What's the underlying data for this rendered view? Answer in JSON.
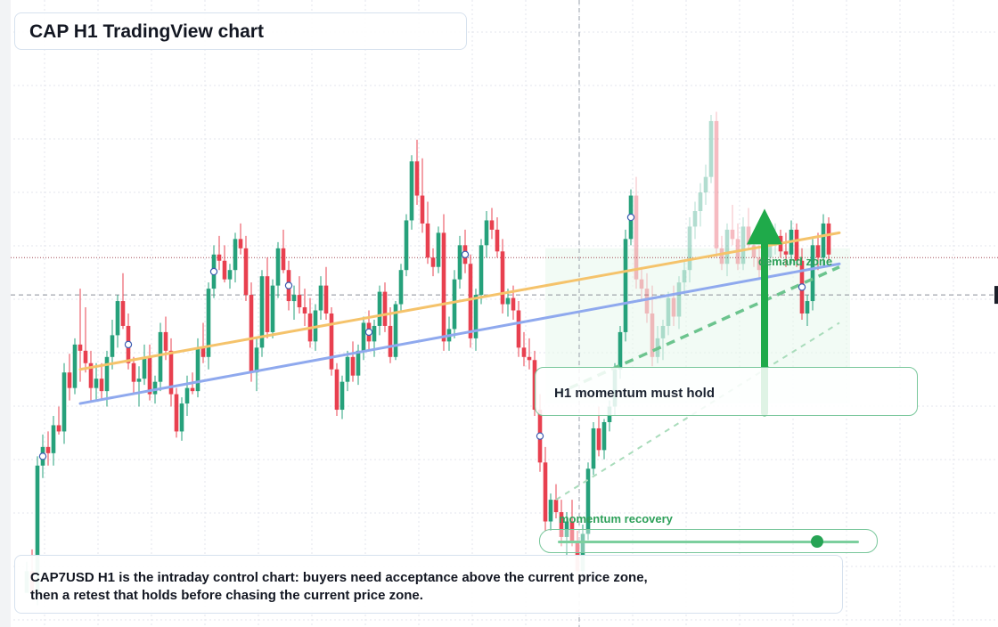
{
  "title": "CAP H1 TradingView chart",
  "callout": {
    "text": "H1 momentum must hold"
  },
  "note": {
    "text": "CAP7USD H1 is the intraday control chart: buyers need acceptance above the current price zone, then a retest that holds before chasing the current price zone."
  },
  "zone_label": "demand zone",
  "slider": {
    "label": "momentum recovery",
    "value": 0.86
  },
  "colors": {
    "up": "#26a17b",
    "down": "#e8404f",
    "trend_orange": "#f5c36b",
    "trend_blue": "#8fa9ee",
    "green_accent": "#2ea05a",
    "arrow": "#1faa4a"
  },
  "chart_data": {
    "type": "candlestick",
    "timeframe": "H1",
    "candles_ohlc": [
      [
        59.4,
        60.4,
        59.6,
        60.1
      ],
      [
        60.1,
        60.8,
        59.2,
        59.4
      ],
      [
        59.4,
        63.8,
        59.0,
        63.5
      ],
      [
        63.5,
        64.5,
        63.1,
        64.1
      ],
      [
        64.1,
        64.6,
        63.5,
        63.9
      ],
      [
        63.9,
        65.1,
        63.5,
        64.8
      ],
      [
        64.8,
        65.4,
        64.5,
        64.6
      ],
      [
        64.6,
        66.8,
        64.2,
        66.5
      ],
      [
        66.5,
        67.1,
        65.6,
        66.0
      ],
      [
        66.0,
        67.6,
        65.8,
        67.4
      ],
      [
        67.4,
        69.2,
        66.2,
        67.2
      ],
      [
        67.2,
        68.6,
        66.5,
        66.8
      ],
      [
        66.8,
        67.2,
        65.6,
        66.0
      ],
      [
        66.0,
        66.8,
        65.6,
        66.3
      ],
      [
        66.3,
        66.8,
        65.6,
        65.9
      ],
      [
        65.9,
        67.2,
        65.4,
        67.0
      ],
      [
        67.0,
        68.2,
        66.6,
        67.7
      ],
      [
        67.7,
        69.0,
        67.3,
        68.8
      ],
      [
        68.8,
        69.7,
        67.9,
        68.0
      ],
      [
        68.0,
        68.4,
        66.6,
        66.8
      ],
      [
        66.8,
        67.0,
        65.8,
        66.2
      ],
      [
        66.2,
        66.7,
        65.4,
        66.3
      ],
      [
        66.3,
        67.4,
        66.1,
        67.0
      ],
      [
        67.0,
        67.4,
        65.6,
        65.8
      ],
      [
        65.8,
        66.4,
        65.5,
        66.2
      ],
      [
        66.2,
        68.1,
        65.9,
        67.8
      ],
      [
        67.8,
        68.3,
        66.9,
        67.2
      ],
      [
        67.2,
        67.6,
        65.4,
        65.8
      ],
      [
        65.8,
        66.0,
        64.4,
        64.6
      ],
      [
        64.6,
        65.7,
        64.3,
        65.5
      ],
      [
        65.5,
        66.4,
        65.1,
        66.0
      ],
      [
        66.0,
        66.5,
        65.8,
        65.9
      ],
      [
        65.9,
        67.6,
        65.7,
        67.3
      ],
      [
        67.3,
        68.1,
        66.8,
        67.0
      ],
      [
        67.0,
        69.4,
        66.6,
        69.2
      ],
      [
        69.2,
        70.6,
        68.9,
        70.3
      ],
      [
        70.3,
        70.9,
        69.8,
        70.1
      ],
      [
        70.1,
        70.6,
        69.4,
        69.5
      ],
      [
        69.5,
        70.0,
        69.2,
        69.8
      ],
      [
        69.8,
        71.0,
        69.4,
        70.8
      ],
      [
        70.8,
        71.3,
        70.3,
        70.5
      ],
      [
        70.5,
        70.9,
        68.8,
        69.0
      ],
      [
        69.0,
        69.4,
        66.2,
        66.5
      ],
      [
        66.5,
        67.6,
        65.9,
        67.3
      ],
      [
        67.3,
        69.8,
        67.0,
        69.6
      ],
      [
        69.6,
        70.2,
        67.6,
        67.8
      ],
      [
        67.8,
        69.5,
        67.6,
        69.3
      ],
      [
        69.3,
        70.7,
        68.9,
        70.5
      ],
      [
        70.5,
        71.1,
        69.7,
        69.8
      ],
      [
        69.8,
        70.1,
        68.5,
        68.8
      ],
      [
        68.8,
        69.3,
        68.2,
        69.0
      ],
      [
        69.0,
        69.6,
        68.4,
        68.6
      ],
      [
        68.6,
        69.2,
        68.0,
        68.4
      ],
      [
        68.4,
        68.9,
        67.3,
        67.5
      ],
      [
        67.5,
        68.7,
        67.2,
        68.5
      ],
      [
        68.5,
        69.6,
        68.2,
        69.3
      ],
      [
        69.3,
        69.9,
        68.2,
        68.4
      ],
      [
        68.4,
        68.6,
        66.4,
        66.6
      ],
      [
        66.6,
        66.8,
        65.1,
        65.3
      ],
      [
        65.3,
        66.4,
        65.0,
        66.2
      ],
      [
        66.2,
        67.2,
        65.9,
        67.0
      ],
      [
        67.0,
        67.5,
        66.2,
        66.4
      ],
      [
        66.4,
        67.4,
        66.1,
        67.2
      ],
      [
        67.2,
        68.3,
        66.9,
        68.1
      ],
      [
        68.1,
        68.5,
        67.2,
        67.5
      ],
      [
        67.5,
        68.2,
        67.0,
        68.0
      ],
      [
        68.0,
        69.3,
        67.7,
        69.1
      ],
      [
        69.1,
        69.4,
        67.8,
        68.0
      ],
      [
        68.0,
        68.6,
        66.8,
        67.0
      ],
      [
        67.0,
        68.8,
        66.9,
        68.7
      ],
      [
        68.7,
        70.0,
        68.5,
        69.8
      ],
      [
        69.8,
        71.6,
        69.6,
        71.4
      ],
      [
        71.4,
        73.5,
        71.1,
        73.3
      ],
      [
        73.3,
        74.0,
        71.9,
        72.2
      ],
      [
        72.2,
        73.4,
        71.0,
        71.3
      ],
      [
        71.3,
        72.0,
        70.0,
        70.2
      ],
      [
        70.2,
        70.5,
        69.6,
        69.9
      ],
      [
        69.9,
        71.2,
        69.7,
        71.0
      ],
      [
        71.0,
        71.6,
        67.2,
        67.5
      ],
      [
        67.5,
        68.3,
        67.2,
        67.9
      ],
      [
        67.9,
        69.8,
        67.6,
        69.5
      ],
      [
        69.5,
        70.9,
        69.2,
        70.6
      ],
      [
        70.6,
        71.1,
        69.7,
        70.0
      ],
      [
        70.0,
        70.3,
        67.3,
        67.6
      ],
      [
        67.6,
        69.2,
        67.2,
        69.0
      ],
      [
        69.0,
        70.8,
        68.7,
        70.6
      ],
      [
        70.6,
        71.7,
        70.2,
        71.4
      ],
      [
        71.4,
        71.8,
        70.8,
        71.1
      ],
      [
        71.1,
        71.5,
        70.2,
        70.4
      ],
      [
        70.4,
        70.8,
        68.4,
        68.7
      ],
      [
        68.7,
        69.2,
        68.3,
        68.9
      ],
      [
        68.9,
        69.3,
        68.2,
        68.5
      ],
      [
        68.5,
        68.8,
        67.0,
        67.3
      ],
      [
        67.3,
        67.8,
        66.7,
        67.0
      ],
      [
        67.0,
        67.6,
        66.6,
        66.9
      ],
      [
        66.9,
        67.2,
        65.1,
        65.3
      ],
      [
        65.3,
        65.8,
        63.3,
        63.6
      ],
      [
        63.6,
        64.1,
        61.4,
        61.7
      ],
      [
        61.7,
        62.6,
        61.4,
        62.4
      ],
      [
        62.4,
        62.9,
        61.8,
        62.0
      ],
      [
        62.0,
        62.4,
        60.9,
        61.2
      ],
      [
        61.2,
        62.0,
        60.5,
        61.7
      ],
      [
        61.7,
        62.4,
        60.9,
        61.0
      ],
      [
        61.0,
        61.4,
        59.8,
        60.1
      ],
      [
        60.1,
        61.6,
        59.9,
        61.3
      ],
      [
        61.3,
        63.6,
        61.1,
        63.4
      ],
      [
        63.4,
        64.9,
        63.2,
        64.7
      ],
      [
        64.7,
        65.4,
        63.8,
        64.0
      ],
      [
        64.0,
        65.0,
        63.7,
        64.9
      ],
      [
        64.9,
        65.6,
        64.6,
        65.4
      ],
      [
        65.4,
        66.8,
        65.1,
        66.6
      ],
      [
        66.6,
        68.0,
        66.3,
        67.8
      ],
      [
        67.8,
        71.1,
        67.5,
        70.8
      ],
      [
        70.8,
        72.4,
        70.6,
        72.2
      ],
      [
        72.2,
        72.8,
        69.2,
        69.5
      ],
      [
        69.5,
        69.9,
        68.8,
        69.2
      ],
      [
        69.2,
        69.7,
        68.1,
        68.4
      ],
      [
        68.4,
        69.3,
        66.7,
        67.0
      ],
      [
        67.0,
        68.0,
        66.8,
        67.6
      ],
      [
        67.6,
        68.2,
        66.9,
        68.0
      ],
      [
        68.0,
        69.1,
        67.7,
        68.9
      ],
      [
        68.9,
        69.3,
        68.0,
        68.3
      ],
      [
        68.3,
        69.6,
        67.9,
        69.4
      ],
      [
        69.4,
        70.1,
        69.0,
        69.8
      ],
      [
        69.8,
        71.5,
        69.4,
        71.2
      ],
      [
        71.2,
        72.0,
        70.8,
        71.7
      ],
      [
        71.7,
        72.6,
        71.2,
        72.3
      ],
      [
        72.3,
        73.2,
        71.9,
        72.8
      ],
      [
        72.8,
        74.8,
        72.6,
        74.6
      ],
      [
        74.6,
        74.9,
        70.2,
        70.5
      ],
      [
        70.5,
        70.9,
        69.8,
        70.0
      ],
      [
        70.0,
        71.3,
        69.6,
        71.1
      ],
      [
        71.1,
        71.9,
        70.6,
        70.8
      ],
      [
        70.8,
        71.3,
        69.8,
        70.0
      ],
      [
        70.0,
        71.5,
        69.8,
        71.2
      ],
      [
        71.2,
        71.8,
        70.5,
        70.6
      ],
      [
        70.6,
        71.0,
        69.9,
        70.2
      ],
      [
        70.2,
        70.6,
        69.5,
        69.8
      ],
      [
        69.8,
        70.5,
        69.4,
        70.2
      ],
      [
        70.2,
        70.9,
        69.8,
        70.6
      ],
      [
        70.6,
        71.3,
        70.3,
        70.9
      ],
      [
        70.9,
        71.1,
        70.2,
        70.4
      ],
      [
        70.4,
        71.0,
        69.9,
        70.3
      ],
      [
        70.3,
        71.4,
        70.0,
        71.1
      ],
      [
        71.1,
        71.3,
        69.9,
        70.1
      ],
      [
        70.1,
        70.5,
        68.2,
        68.4
      ],
      [
        68.4,
        69.0,
        68.0,
        68.8
      ],
      [
        68.8,
        70.8,
        68.5,
        70.6
      ],
      [
        70.6,
        71.0,
        69.8,
        70.2
      ],
      [
        70.2,
        71.6,
        69.9,
        71.3
      ],
      [
        71.3,
        71.5,
        70.1,
        70.3
      ]
    ],
    "trend_lines": [
      {
        "name": "orange",
        "from": [
          10,
          66.6
        ],
        "to": [
          152,
          71.0
        ]
      },
      {
        "name": "blue",
        "from": [
          10,
          65.5
        ],
        "to": [
          152,
          70.0
        ]
      }
    ],
    "dashed_green_projection": {
      "from": [
        99,
        65.8
      ],
      "to": [
        152,
        69.9
      ]
    },
    "light_green_projection": {
      "from": [
        99,
        62.4
      ],
      "to": [
        152,
        68.1
      ]
    },
    "current_price": 69.0,
    "dotted_level": 70.2,
    "demand_zone": {
      "from_index": 97,
      "to_index": 154,
      "low": 65.5,
      "high": 70.5
    },
    "markers": [
      3,
      19,
      35,
      49,
      64,
      82,
      96,
      113,
      145
    ],
    "annotation_arrow": {
      "x_index": 138,
      "from_price": 65.2,
      "to_price": 71.2
    },
    "y_range": [
      58.3,
      78.5
    ],
    "grid": true
  }
}
